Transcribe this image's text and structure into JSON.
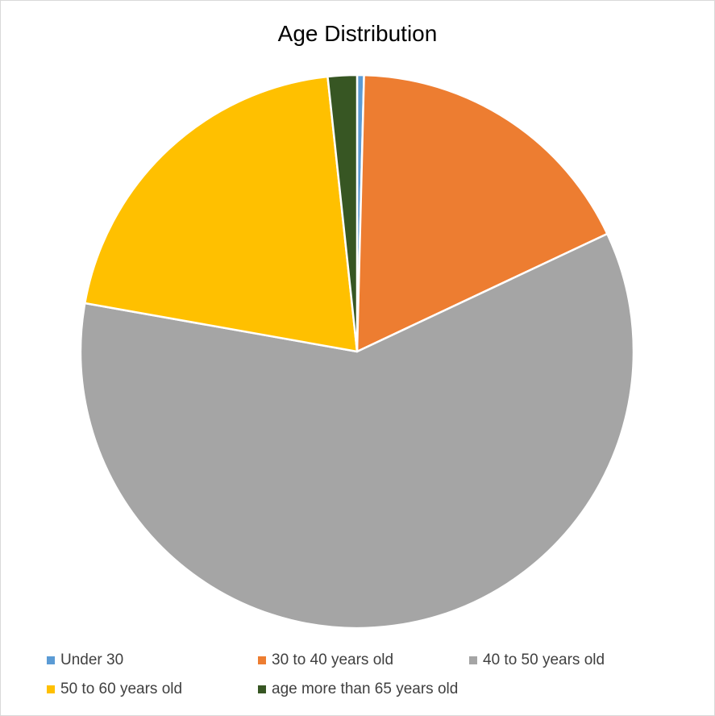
{
  "chart_data": {
    "type": "pie",
    "title": "Age Distribution",
    "categories": [
      "Under 30",
      "30 to 40 years old",
      "40 to 50 years old",
      "50 to 60 years old",
      "age more than 65 years old"
    ],
    "values": [
      0.4,
      17.6,
      59.8,
      20.5,
      1.7
    ],
    "colors": [
      "#5B9BD5",
      "#ED7D31",
      "#A5A5A5",
      "#FFC000",
      "#375623"
    ],
    "start_angle_deg": 0,
    "direction": "clockwise",
    "legend_position": "bottom"
  }
}
